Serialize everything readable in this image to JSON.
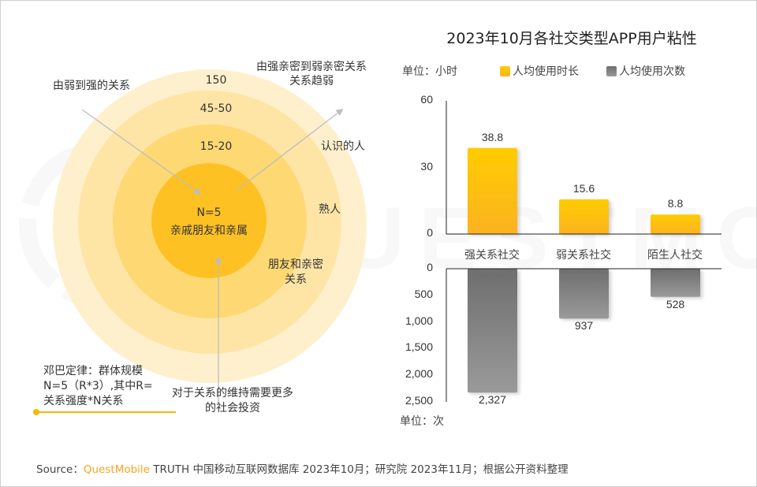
{
  "title": "2023年10月各社交类型APP用户粘性",
  "left_diagram": {
    "rings": [
      {
        "label": "150",
        "color": "#fef0cc"
      },
      {
        "label": "45-50",
        "color": "#fee5a6"
      },
      {
        "label": "15-20",
        "color": "#fed873"
      },
      {
        "label": "N=5",
        "sublabel": "亲戚朋友和亲属",
        "color": "#fec124"
      }
    ],
    "annotations": {
      "weak_to_strong": "由弱到强的关系",
      "strong_to_weak_line1": "由强亲密到弱亲密关系",
      "strong_to_weak_line2": "关系趋弱",
      "acquaintance": "认识的人",
      "familiar": "熟人",
      "friends_line1": "朋友和亲密",
      "friends_line2": "关系",
      "investment_line1": "对于关系的维持需要更多",
      "investment_line2": "的社会投资",
      "dunbar_line1": "邓巴定律：群体规模",
      "dunbar_line2": "N=5（R*3）,其中R=",
      "dunbar_line3": "关系强度*N关系"
    },
    "accent_color": "#f5b800"
  },
  "chart_data": {
    "type": "bar",
    "title": "2023年10月各社交类型APP用户粘性",
    "categories": [
      "强关系社交",
      "弱关系社交",
      "陌生人社交"
    ],
    "series": [
      {
        "name": "人均使用时长",
        "unit": "单位：小时",
        "values": [
          38.8,
          15.6,
          8.8
        ],
        "value_labels": [
          "38.8",
          "15.6",
          "8.8"
        ],
        "ylim": [
          0,
          60
        ],
        "ticks": [
          "0",
          "30",
          "60"
        ],
        "tick_values": [
          0,
          30,
          60
        ],
        "color_top": "#ffcc00",
        "color_bottom": "#fbb321",
        "direction": "up"
      },
      {
        "name": "人均使用次数",
        "unit": "单位：次",
        "values": [
          2327,
          937,
          528
        ],
        "value_labels": [
          "2,327",
          "937",
          "528"
        ],
        "ylim": [
          0,
          2500
        ],
        "ticks": [
          "0",
          "500",
          "1,000",
          "1,500",
          "2,000",
          "2,500"
        ],
        "tick_values": [
          0,
          500,
          1000,
          1500,
          2000,
          2500
        ],
        "color_top": "#6e6e6e",
        "color_bottom": "#9a9a9a",
        "direction": "down"
      }
    ],
    "legend": [
      "人均使用时长",
      "人均使用次数"
    ],
    "legend_position": "top",
    "grid": false
  },
  "source": {
    "prefix": "Source：",
    "brand": "QuestMobile",
    "rest": " TRUTH 中国移动互联网数据库 2023年10月；研究院 2023年11月；根据公开资料整理"
  }
}
